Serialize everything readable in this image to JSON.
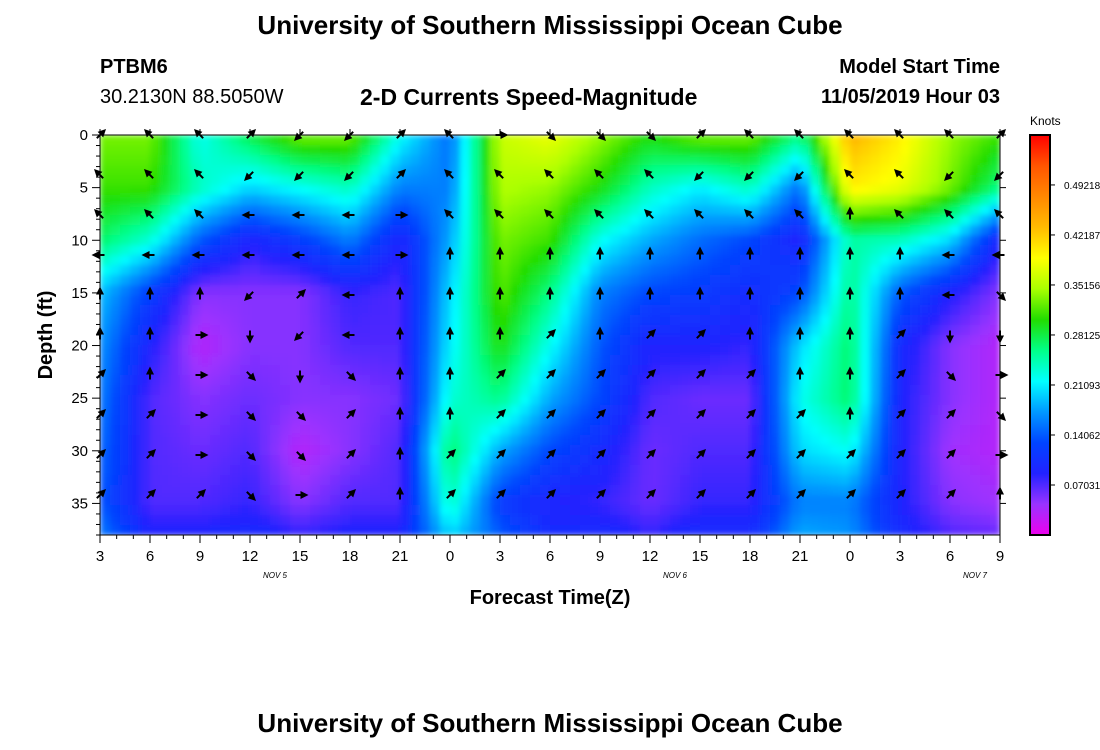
{
  "page_title": "University of Southern Mississippi Ocean Cube",
  "footer_title": "University of Southern Mississippi Ocean Cube",
  "station": {
    "id": "PTBM6",
    "location": "30.2130N 88.5050W"
  },
  "model_start": {
    "label": "Model Start Time",
    "value": "11/05/2019 Hour 03"
  },
  "chart_data": {
    "type": "heatmap",
    "title": "2-D Currents Speed-Magnitude",
    "xlabel": "Forecast Time(Z)",
    "ylabel": "Depth (ft)",
    "x_ticks": [
      "3",
      "6",
      "9",
      "12",
      "15",
      "18",
      "21",
      "0",
      "3",
      "6",
      "9",
      "12",
      "15",
      "18",
      "21",
      "0",
      "3",
      "6",
      "9"
    ],
    "x_range_hours": [
      3,
      57
    ],
    "y_ticks": [
      "0",
      "5",
      "10",
      "15",
      "20",
      "25",
      "30",
      "35"
    ],
    "y_range_ft": [
      0,
      38
    ],
    "y_inverted": true,
    "date_labels": [
      {
        "text": "NOV 5",
        "hour": 13.5
      },
      {
        "text": "NOV 6",
        "hour": 37.5
      },
      {
        "text": "NOV 7",
        "hour": 55.5
      }
    ],
    "colorbar": {
      "unit": "Knots",
      "range": [
        0,
        0.5624
      ],
      "ticks": [
        "0.49218",
        "0.42187",
        "0.35156",
        "0.28125",
        "0.21093",
        "0.14062",
        "0.07031"
      ],
      "tick_values": [
        0.49218,
        0.42187,
        0.35156,
        0.28125,
        0.21093,
        0.14062,
        0.07031
      ],
      "colors": [
        "#ee00ee",
        "#9933ff",
        "#2222ff",
        "#0044ff",
        "#0099ff",
        "#00ffff",
        "#00ff88",
        "#22dd00",
        "#aaff00",
        "#ffff00",
        "#ffbb00",
        "#ff8800",
        "#ff5500",
        "#ff0000"
      ]
    },
    "speed_rows_depth_ft": [
      0,
      5,
      10,
      15,
      20,
      25,
      30,
      35,
      38
    ],
    "speed_grid_knots": [
      [
        0.33,
        0.33,
        0.22,
        0.28,
        0.33,
        0.33,
        0.22,
        0.15,
        0.36,
        0.38,
        0.34,
        0.3,
        0.33,
        0.33,
        0.26,
        0.44,
        0.4,
        0.34,
        0.31
      ],
      [
        0.31,
        0.31,
        0.24,
        0.2,
        0.22,
        0.24,
        0.16,
        0.16,
        0.35,
        0.34,
        0.3,
        0.24,
        0.21,
        0.24,
        0.15,
        0.4,
        0.38,
        0.33,
        0.26
      ],
      [
        0.27,
        0.23,
        0.14,
        0.09,
        0.12,
        0.16,
        0.09,
        0.18,
        0.33,
        0.31,
        0.22,
        0.18,
        0.15,
        0.13,
        0.09,
        0.25,
        0.24,
        0.2,
        0.09
      ],
      [
        0.19,
        0.12,
        0.05,
        0.05,
        0.05,
        0.08,
        0.07,
        0.2,
        0.32,
        0.26,
        0.16,
        0.13,
        0.12,
        0.1,
        0.13,
        0.26,
        0.14,
        0.09,
        0.05
      ],
      [
        0.17,
        0.09,
        0.03,
        0.05,
        0.05,
        0.07,
        0.07,
        0.21,
        0.3,
        0.22,
        0.14,
        0.09,
        0.09,
        0.08,
        0.2,
        0.27,
        0.1,
        0.05,
        0.03
      ],
      [
        0.16,
        0.07,
        0.05,
        0.06,
        0.05,
        0.05,
        0.06,
        0.23,
        0.26,
        0.18,
        0.13,
        0.07,
        0.06,
        0.06,
        0.22,
        0.27,
        0.09,
        0.05,
        0.03
      ],
      [
        0.15,
        0.07,
        0.06,
        0.07,
        0.03,
        0.05,
        0.07,
        0.27,
        0.18,
        0.13,
        0.1,
        0.06,
        0.07,
        0.07,
        0.2,
        0.22,
        0.09,
        0.04,
        0.03
      ],
      [
        0.14,
        0.07,
        0.07,
        0.08,
        0.05,
        0.07,
        0.07,
        0.24,
        0.12,
        0.09,
        0.08,
        0.06,
        0.08,
        0.08,
        0.16,
        0.16,
        0.09,
        0.05,
        0.04
      ],
      [
        0.16,
        0.09,
        0.09,
        0.1,
        0.08,
        0.09,
        0.09,
        0.2,
        0.14,
        0.1,
        0.1,
        0.08,
        0.1,
        0.1,
        0.18,
        0.17,
        0.1,
        0.07,
        0.06
      ]
    ],
    "arrow_rows_depth_ft": [
      0,
      3.8,
      7.6,
      11.4,
      15.2,
      19.0,
      22.8,
      26.6,
      30.4,
      34.2
    ],
    "arrow_directions_deg": [
      [
        45,
        315,
        315,
        45,
        225,
        225,
        45,
        315,
        90,
        135,
        135,
        135,
        45,
        315,
        315,
        315,
        315,
        315,
        45
      ],
      [
        315,
        315,
        315,
        225,
        225,
        225,
        45,
        315,
        315,
        315,
        315,
        315,
        225,
        225,
        225,
        315,
        315,
        225,
        225
      ],
      [
        315,
        315,
        315,
        270,
        270,
        270,
        90,
        315,
        315,
        315,
        315,
        315,
        315,
        315,
        315,
        0,
        315,
        315,
        315
      ],
      [
        270,
        270,
        270,
        270,
        270,
        270,
        90,
        0,
        0,
        0,
        0,
        0,
        0,
        0,
        0,
        0,
        0,
        270,
        270
      ],
      [
        0,
        0,
        0,
        225,
        45,
        270,
        0,
        0,
        0,
        0,
        0,
        0,
        0,
        0,
        0,
        0,
        0,
        270,
        135
      ],
      [
        0,
        0,
        90,
        180,
        225,
        270,
        0,
        0,
        0,
        45,
        0,
        45,
        45,
        0,
        0,
        0,
        45,
        180,
        180
      ],
      [
        45,
        0,
        90,
        135,
        180,
        135,
        0,
        0,
        45,
        45,
        45,
        45,
        45,
        45,
        0,
        0,
        45,
        135,
        90
      ],
      [
        45,
        45,
        90,
        135,
        135,
        45,
        0,
        0,
        45,
        45,
        45,
        45,
        45,
        45,
        45,
        0,
        45,
        45,
        135
      ],
      [
        45,
        45,
        90,
        135,
        135,
        45,
        0,
        45,
        45,
        45,
        45,
        45,
        45,
        45,
        45,
        45,
        45,
        45,
        90
      ],
      [
        45,
        45,
        45,
        135,
        90,
        45,
        0,
        45,
        45,
        45,
        45,
        45,
        45,
        45,
        45,
        45,
        45,
        45,
        0
      ]
    ]
  }
}
